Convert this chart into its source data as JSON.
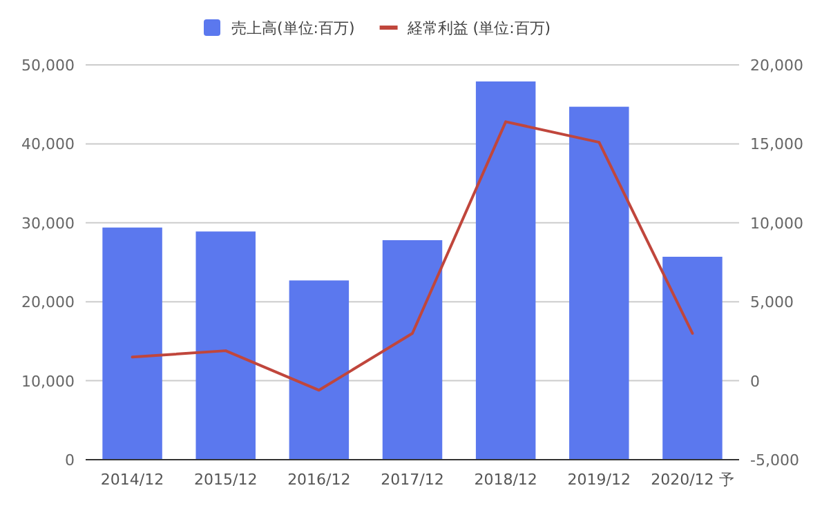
{
  "chart_data": {
    "type": "bar",
    "categories": [
      "2014/12",
      "2015/12",
      "2016/12",
      "2017/12",
      "2018/12",
      "2019/12",
      "2020/12 予"
    ],
    "series": [
      {
        "name": "売上高(単位:百万)",
        "color": "#5b78ee",
        "values": [
          29400,
          28900,
          22700,
          27800,
          47900,
          44700,
          25700
        ]
      },
      {
        "name": "経常利益 (単位:百万)",
        "type": "line",
        "axis": "y2",
        "color": "#c0463c",
        "values": [
          1500,
          1900,
          -600,
          3000,
          16400,
          15100,
          3000
        ]
      }
    ],
    "ylim": [
      0,
      50000
    ],
    "yticks": [
      {
        "value": 0,
        "label": "0"
      },
      {
        "value": 10000,
        "label": "10,000"
      },
      {
        "value": 20000,
        "label": "20,000"
      },
      {
        "value": 30000,
        "label": "30,000"
      },
      {
        "value": 40000,
        "label": "40,000"
      },
      {
        "value": 50000,
        "label": "50,000"
      }
    ],
    "y2lim": [
      -5000,
      20000
    ],
    "y2ticks": [
      {
        "value": -5000,
        "label": "-5,000"
      },
      {
        "value": 0,
        "label": "0"
      },
      {
        "value": 5000,
        "label": "5,000"
      },
      {
        "value": 10000,
        "label": "10,000"
      },
      {
        "value": 15000,
        "label": "15,000"
      },
      {
        "value": 20000,
        "label": "20,000"
      }
    ],
    "grid": "y",
    "legend": "top"
  }
}
